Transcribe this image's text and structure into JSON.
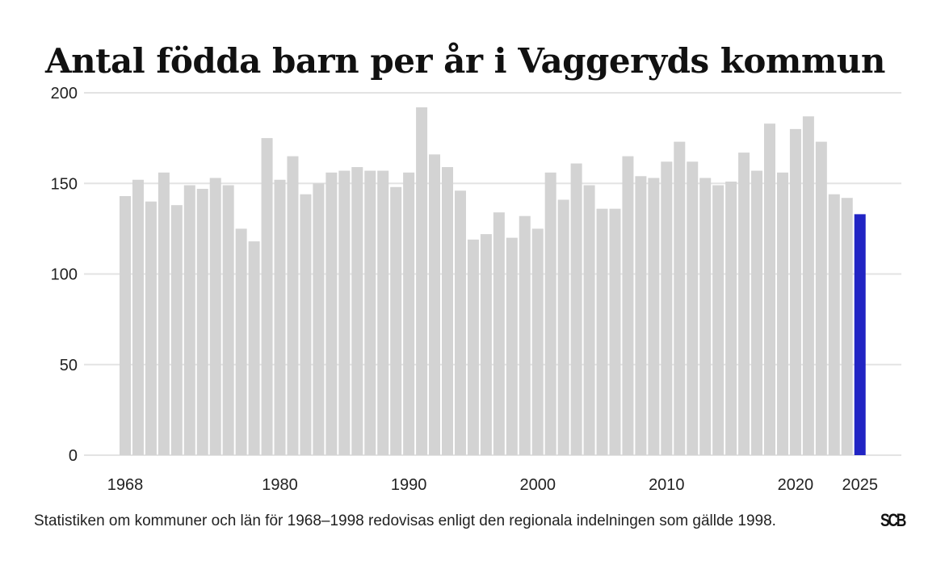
{
  "title": "Antal födda barn per år i Vaggeryds kommun",
  "note": "Statistiken om kommuner och län för 1968–1998 redovisas enligt den regionala indelningen som gällde 1998.",
  "logo_text": "SCB",
  "colors": {
    "bar": "#d3d3d3",
    "highlight": "#2124c4",
    "grid": "#e3e3e3"
  },
  "chart_data": {
    "type": "bar",
    "title": "Antal födda barn per år i Vaggeryds kommun",
    "xlabel": "",
    "ylabel": "",
    "ylim": [
      0,
      200
    ],
    "yticks": [
      0,
      50,
      100,
      150,
      200
    ],
    "xticks": [
      1968,
      1980,
      1990,
      2000,
      2010,
      2020,
      2025
    ],
    "highlight": 2025,
    "grid": true,
    "years": [
      1968,
      1969,
      1970,
      1971,
      1972,
      1973,
      1974,
      1975,
      1976,
      1977,
      1978,
      1979,
      1980,
      1981,
      1982,
      1983,
      1984,
      1985,
      1986,
      1987,
      1988,
      1989,
      1990,
      1991,
      1992,
      1993,
      1994,
      1995,
      1996,
      1997,
      1998,
      1999,
      2000,
      2001,
      2002,
      2003,
      2004,
      2005,
      2006,
      2007,
      2008,
      2009,
      2010,
      2011,
      2012,
      2013,
      2014,
      2015,
      2016,
      2017,
      2018,
      2019,
      2020,
      2021,
      2022,
      2023,
      2024,
      2025
    ],
    "values": [
      143,
      152,
      140,
      156,
      138,
      149,
      147,
      153,
      149,
      125,
      118,
      175,
      152,
      165,
      144,
      150,
      156,
      157,
      159,
      157,
      157,
      148,
      156,
      192,
      166,
      159,
      146,
      119,
      122,
      134,
      120,
      132,
      125,
      156,
      141,
      161,
      149,
      136,
      136,
      165,
      154,
      153,
      162,
      173,
      162,
      153,
      149,
      151,
      167,
      157,
      183,
      156,
      180,
      187,
      173,
      144,
      142,
      133
    ]
  }
}
